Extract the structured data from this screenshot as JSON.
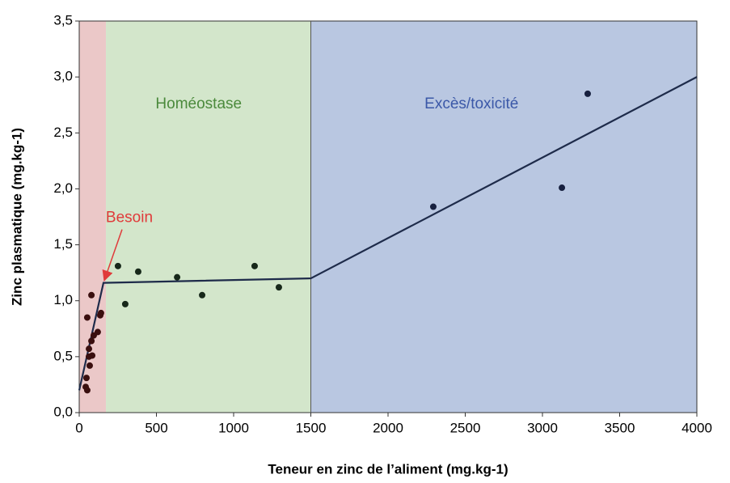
{
  "chart_data": {
    "type": "scatter",
    "xlabel": "Teneur en zinc de l’aliment  (mg.kg-1)",
    "ylabel": "Zinc plasmatique (mg.kg-1)",
    "xlim": [
      0,
      4000
    ],
    "xticks": [
      0,
      500,
      1000,
      1500,
      2000,
      2500,
      3000,
      3500,
      4000
    ],
    "ylim": [
      0,
      3.5
    ],
    "yticks": [
      {
        "value": 0,
        "label": "0,0"
      },
      {
        "value": 0.5,
        "label": "0,5"
      },
      {
        "value": 1,
        "label": "1,0"
      },
      {
        "value": 1.5,
        "label": "1,5"
      },
      {
        "value": 2,
        "label": "2,0"
      },
      {
        "value": 2.5,
        "label": "2,5"
      },
      {
        "value": 3,
        "label": "3,0"
      },
      {
        "value": 3.5,
        "label": "3,5"
      }
    ],
    "regions": [
      {
        "x0": 0,
        "x1": 173,
        "color": "#ebc8c8"
      },
      {
        "label": "Homéostase",
        "x0": 173,
        "x1": 1500,
        "color": "#d3e6cb",
        "label_color": "#4b8a3c"
      },
      {
        "label": "Excès/toxicité",
        "x0": 1500,
        "x1": 4000,
        "color": "#b9c7e1",
        "label_color": "#3b58a8"
      }
    ],
    "series": [
      {
        "color": "#3a0f0f",
        "x": [
          42,
          52,
          47,
          52,
          79,
          63,
          63,
          68,
          84,
          79,
          94,
          120,
          136,
          141
        ],
        "y": [
          0.23,
          0.2,
          0.31,
          0.85,
          1.05,
          0.57,
          0.5,
          0.42,
          0.51,
          0.64,
          0.69,
          0.72,
          0.87,
          0.89
        ]
      },
      {
        "color": "#17281a",
        "x": [
          251,
          298,
          382,
          634,
          796,
          1136,
          1293
        ],
        "y": [
          1.31,
          0.97,
          1.26,
          1.21,
          1.05,
          1.31,
          1.12
        ]
      },
      {
        "color": "#17203f",
        "x": [
          2293,
          3126,
          3293
        ],
        "y": [
          1.84,
          2.01,
          2.85
        ]
      }
    ],
    "fit_line": {
      "color": "#1e2b4a",
      "x": [
        0,
        157,
        1500,
        4000
      ],
      "y": [
        0.2,
        1.16,
        1.2,
        3.0
      ]
    },
    "annotation": {
      "text": "Besoin",
      "color": "#e03a3a"
    }
  }
}
